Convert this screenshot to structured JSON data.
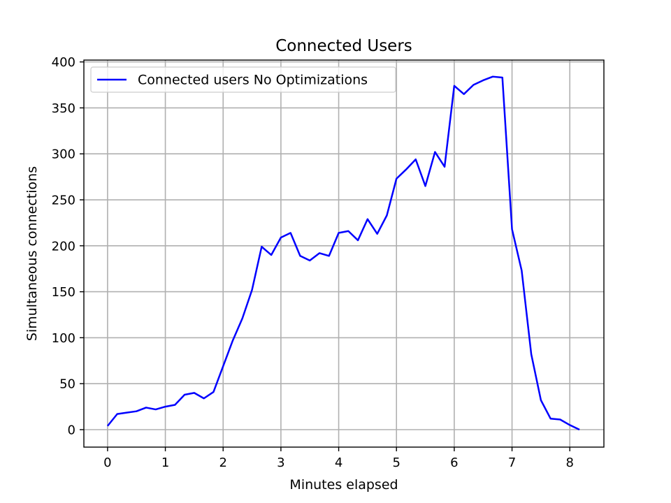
{
  "chart_data": {
    "type": "line",
    "title": "Connected Users",
    "xlabel": "Minutes elapsed",
    "ylabel": "Simultaneous connections",
    "xlim": [
      -0.41,
      8.59
    ],
    "ylim": [
      -19,
      402
    ],
    "xticks": [
      0,
      1,
      2,
      3,
      4,
      5,
      6,
      7,
      8
    ],
    "yticks": [
      0,
      50,
      100,
      150,
      200,
      250,
      300,
      350,
      400
    ],
    "grid": true,
    "legend_position": "top-left",
    "series": [
      {
        "name": "Connected users No Optimizations",
        "color": "#0000ff",
        "x": [
          0,
          0.167,
          0.333,
          0.5,
          0.667,
          0.833,
          1.0,
          1.167,
          1.333,
          1.5,
          1.667,
          1.833,
          2.0,
          2.167,
          2.333,
          2.5,
          2.667,
          2.833,
          3.0,
          3.167,
          3.333,
          3.5,
          3.667,
          3.833,
          4.0,
          4.167,
          4.333,
          4.5,
          4.667,
          4.833,
          5.0,
          5.167,
          5.333,
          5.5,
          5.667,
          5.833,
          6.0,
          6.167,
          6.333,
          6.5,
          6.667,
          6.833,
          7.0,
          7.167,
          7.333,
          7.5,
          7.667,
          7.833,
          8.0,
          8.167
        ],
        "y": [
          4,
          17,
          18.5,
          20,
          24,
          22,
          25,
          27,
          38,
          40,
          34,
          41,
          69,
          97,
          121,
          152,
          199,
          190,
          209,
          214,
          189,
          184,
          192,
          189,
          214,
          216,
          206,
          229,
          213,
          233,
          273,
          283,
          294,
          265,
          302,
          286,
          374,
          365,
          375,
          380,
          384,
          383,
          218,
          173,
          82,
          32,
          12,
          11,
          5,
          0
        ]
      }
    ]
  }
}
